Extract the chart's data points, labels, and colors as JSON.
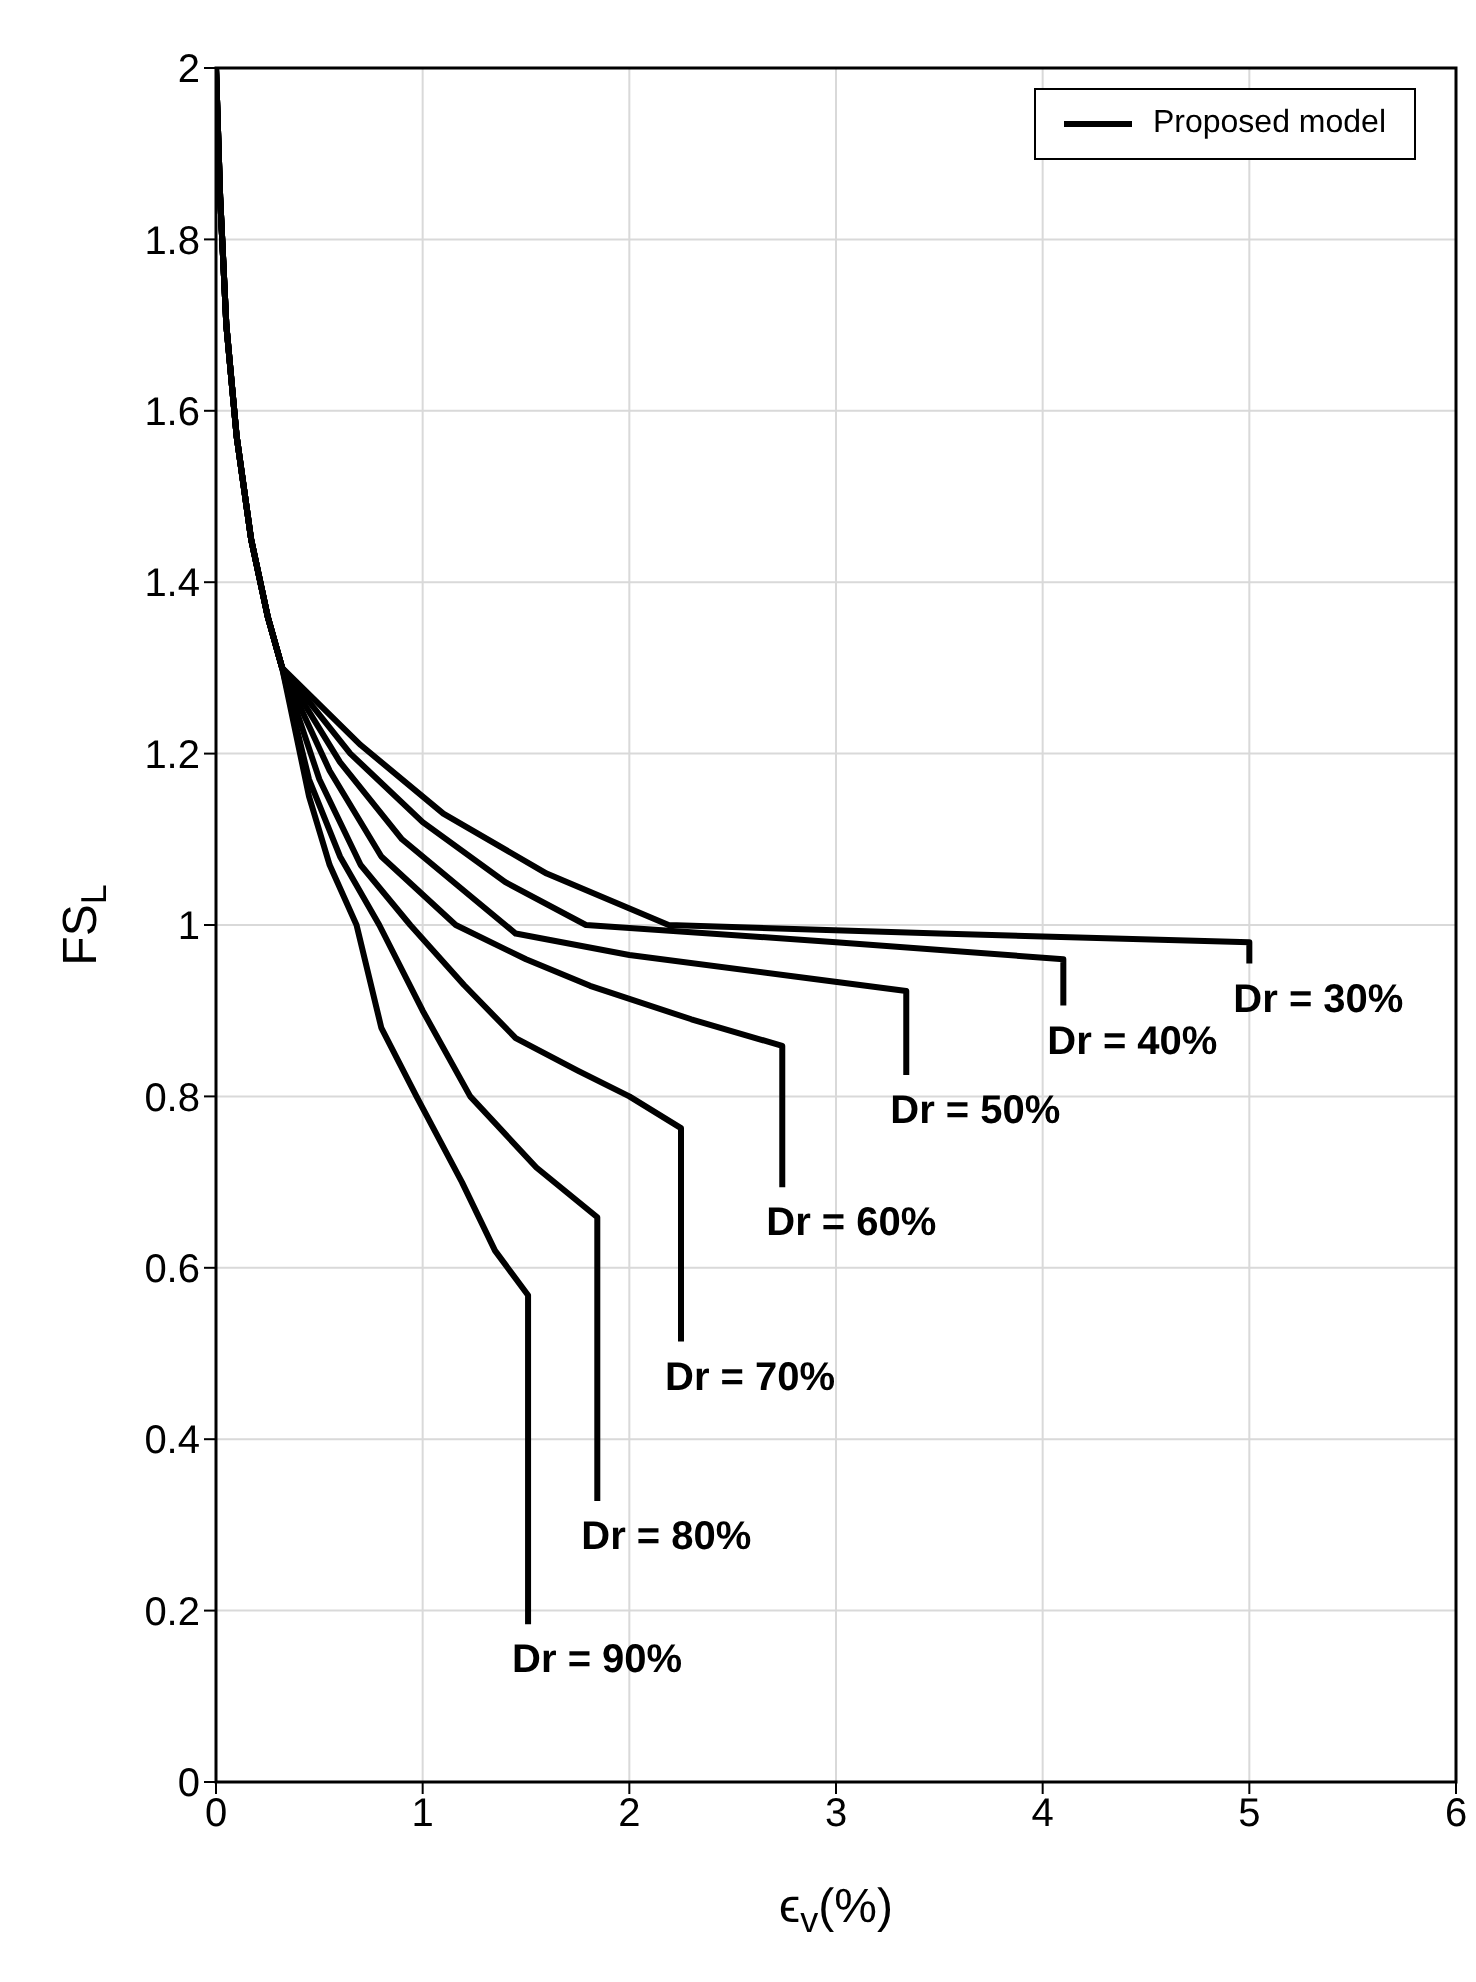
{
  "chart_data": {
    "type": "line",
    "xlabel": "ϵ$_{v}$(%)",
    "ylabel": "FS$_{L}$",
    "xlim": [
      0,
      6
    ],
    "ylim": [
      0,
      2
    ],
    "xticks": [
      0,
      1,
      2,
      3,
      4,
      5,
      6
    ],
    "yticks": [
      0,
      0.2,
      0.4,
      0.6,
      0.8,
      1,
      1.2,
      1.4,
      1.6,
      1.8,
      2
    ],
    "grid": true,
    "legend": "top right",
    "marker": "none",
    "line_style": "solid",
    "series": [
      {
        "name": "Proposed model",
        "color": "#000000",
        "x": [
          0,
          0.02,
          0.05,
          0.1,
          0.17,
          0.25,
          0.32,
          0.7,
          1.1,
          1.6,
          2.19,
          3.5,
          5.0,
          5.0
        ],
        "values": [
          2,
          1.85,
          1.7,
          1.57,
          1.45,
          1.36,
          1.3,
          1.21,
          1.13,
          1.06,
          1.0,
          0.99,
          0.98,
          0.955
        ]
      },
      {
        "color": "#000000",
        "x": [
          0,
          0.02,
          0.05,
          0.1,
          0.17,
          0.25,
          0.32,
          0.65,
          1.0,
          1.4,
          1.79,
          3.0,
          4.1,
          4.1
        ],
        "values": [
          2,
          1.85,
          1.7,
          1.57,
          1.45,
          1.36,
          1.3,
          1.2,
          1.12,
          1.05,
          1.0,
          0.98,
          0.96,
          0.906
        ]
      },
      {
        "color": "#000000",
        "x": [
          0,
          0.02,
          0.05,
          0.1,
          0.17,
          0.25,
          0.32,
          0.6,
          0.9,
          1.2,
          1.45,
          2.0,
          2.8,
          3.34,
          3.34
        ],
        "values": [
          2,
          1.85,
          1.7,
          1.57,
          1.45,
          1.36,
          1.3,
          1.19,
          1.1,
          1.04,
          0.99,
          0.965,
          0.94,
          0.923,
          0.825
        ]
      },
      {
        "color": "#000000",
        "x": [
          0,
          0.02,
          0.05,
          0.1,
          0.17,
          0.25,
          0.32,
          0.55,
          0.8,
          1.16,
          1.5,
          1.81,
          2.3,
          2.74,
          2.74
        ],
        "values": [
          2,
          1.85,
          1.7,
          1.57,
          1.45,
          1.36,
          1.3,
          1.18,
          1.08,
          1.0,
          0.96,
          0.929,
          0.89,
          0.859,
          0.694
        ]
      },
      {
        "color": "#000000",
        "x": [
          0,
          0.02,
          0.05,
          0.1,
          0.17,
          0.25,
          0.32,
          0.5,
          0.7,
          0.94,
          1.2,
          1.45,
          1.75,
          2.0,
          2.25,
          2.25
        ],
        "values": [
          2,
          1.85,
          1.7,
          1.57,
          1.45,
          1.36,
          1.3,
          1.17,
          1.07,
          1.0,
          0.93,
          0.868,
          0.83,
          0.8,
          0.763,
          0.514
        ]
      },
      {
        "color": "#000000",
        "x": [
          0,
          0.02,
          0.05,
          0.1,
          0.17,
          0.25,
          0.32,
          0.45,
          0.6,
          0.79,
          1.0,
          1.23,
          1.55,
          1.845,
          1.845
        ],
        "values": [
          2,
          1.85,
          1.7,
          1.57,
          1.45,
          1.36,
          1.3,
          1.17,
          1.08,
          1.0,
          0.9,
          0.8,
          0.717,
          0.659,
          0.328
        ]
      },
      {
        "color": "#000000",
        "x": [
          0,
          0.02,
          0.05,
          0.1,
          0.17,
          0.25,
          0.32,
          0.45,
          0.55,
          0.68,
          0.8,
          0.97,
          1.19,
          1.35,
          1.51,
          1.51
        ],
        "values": [
          2,
          1.85,
          1.7,
          1.57,
          1.45,
          1.36,
          1.3,
          1.15,
          1.07,
          1.0,
          0.88,
          0.8,
          0.7,
          0.62,
          0.568,
          0.184
        ]
      }
    ],
    "annotations": [
      {
        "text": "Dr = 30%",
        "x": 5.0,
        "y": 0.955
      },
      {
        "text": "Dr = 40%",
        "x": 4.1,
        "y": 0.906
      },
      {
        "text": "Dr = 50%",
        "x": 3.34,
        "y": 0.825
      },
      {
        "text": "Dr = 60%",
        "x": 2.74,
        "y": 0.694
      },
      {
        "text": "Dr = 70%",
        "x": 2.25,
        "y": 0.514
      },
      {
        "text": "Dr = 80%",
        "x": 1.845,
        "y": 0.328
      },
      {
        "text": "Dr = 90%",
        "x": 1.51,
        "y": 0.184
      }
    ]
  }
}
